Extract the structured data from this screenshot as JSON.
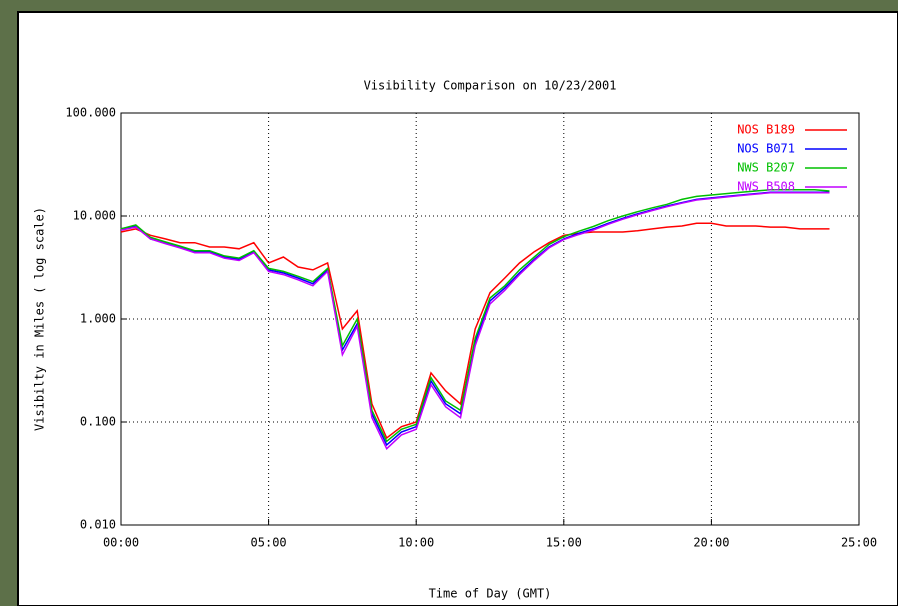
{
  "chart_data": {
    "type": "line",
    "title": "Visibility Comparison on 10/23/2001",
    "x_label": "Time of Day (GMT)",
    "y_label": "Visibilty in Miles ( log scale)",
    "y_scale": "log",
    "grid": true,
    "legend": "upper right",
    "xlim": [
      0,
      25
    ],
    "ylim": [
      0.01,
      100
    ],
    "xticks": [
      {
        "value": 0,
        "label": "00:00"
      },
      {
        "value": 5,
        "label": "05:00"
      },
      {
        "value": 10,
        "label": "10:00"
      },
      {
        "value": 15,
        "label": "15:00"
      },
      {
        "value": 20,
        "label": "20:00"
      },
      {
        "value": 25,
        "label": "25:00"
      }
    ],
    "yticks": [
      {
        "value": 0.01,
        "label": "0.010"
      },
      {
        "value": 0.1,
        "label": "0.100"
      },
      {
        "value": 1,
        "label": "1.000"
      },
      {
        "value": 10,
        "label": "10.000"
      },
      {
        "value": 100,
        "label": "100.000"
      }
    ],
    "x": [
      0,
      0.5,
      1,
      1.5,
      2,
      2.5,
      3,
      3.5,
      4,
      4.5,
      5,
      5.5,
      6,
      6.5,
      7,
      7.5,
      8,
      8.5,
      9,
      9.5,
      10,
      10.5,
      11,
      11.5,
      12,
      12.5,
      13,
      13.5,
      14,
      14.5,
      15,
      15.5,
      16,
      16.5,
      17,
      17.5,
      18,
      18.5,
      19,
      19.5,
      20,
      20.5,
      21,
      21.5,
      22,
      22.5,
      23,
      23.5,
      24
    ],
    "series": [
      {
        "name": "NOS B189",
        "color": "#ff0000",
        "values": [
          7,
          7.5,
          6.5,
          6,
          5.5,
          5.5,
          5,
          5,
          4.8,
          5.5,
          3.5,
          4,
          3.2,
          3,
          3.5,
          0.8,
          1.2,
          0.15,
          0.07,
          0.09,
          0.1,
          0.3,
          0.2,
          0.15,
          0.8,
          1.8,
          2.5,
          3.5,
          4.5,
          5.5,
          6.5,
          6.8,
          7,
          7,
          7,
          7.2,
          7.5,
          7.8,
          8,
          8.5,
          8.5,
          8,
          8,
          8,
          7.8,
          7.8,
          7.5,
          7.5,
          7.5
        ]
      },
      {
        "name": "NOS B071",
        "color": "#0000ff",
        "values": [
          7.5,
          8,
          6,
          5.5,
          5,
          4.5,
          4.5,
          4,
          3.8,
          4.5,
          3,
          2.8,
          2.5,
          2.2,
          3,
          0.5,
          0.9,
          0.12,
          0.06,
          0.08,
          0.09,
          0.25,
          0.15,
          0.12,
          0.6,
          1.5,
          2,
          2.8,
          3.8,
          5,
          6,
          6.8,
          7.5,
          8.5,
          9.5,
          10.5,
          11.5,
          12.5,
          13.5,
          14.5,
          15,
          15.5,
          16,
          16.5,
          17,
          17,
          17,
          17,
          17
        ]
      },
      {
        "name": "NWS B207",
        "color": "#00c000",
        "values": [
          7.5,
          8.2,
          6.2,
          5.6,
          5.1,
          4.6,
          4.6,
          4.1,
          3.9,
          4.6,
          3.1,
          2.9,
          2.6,
          2.3,
          3.1,
          0.55,
          1,
          0.13,
          0.065,
          0.085,
          0.095,
          0.27,
          0.16,
          0.13,
          0.65,
          1.6,
          2.1,
          3,
          4,
          5.3,
          6.3,
          7.1,
          7.9,
          9,
          10,
          11,
          12,
          13,
          14.5,
          15.5,
          16,
          16.5,
          17,
          17.5,
          18,
          18,
          18,
          18,
          17.5
        ]
      },
      {
        "name": "NWS B508",
        "color": "#c000ff",
        "values": [
          7.3,
          7.8,
          6,
          5.4,
          4.9,
          4.4,
          4.4,
          3.9,
          3.7,
          4.4,
          2.9,
          2.7,
          2.4,
          2.1,
          2.9,
          0.45,
          0.85,
          0.11,
          0.055,
          0.075,
          0.085,
          0.23,
          0.14,
          0.11,
          0.55,
          1.4,
          1.9,
          2.7,
          3.7,
          4.9,
          5.9,
          6.6,
          7.3,
          8.3,
          9.3,
          10.3,
          11.3,
          12.3,
          13.3,
          14.3,
          14.8,
          15.3,
          15.8,
          16.3,
          16.8,
          16.8,
          16.8,
          16.8,
          16.8
        ]
      }
    ]
  }
}
